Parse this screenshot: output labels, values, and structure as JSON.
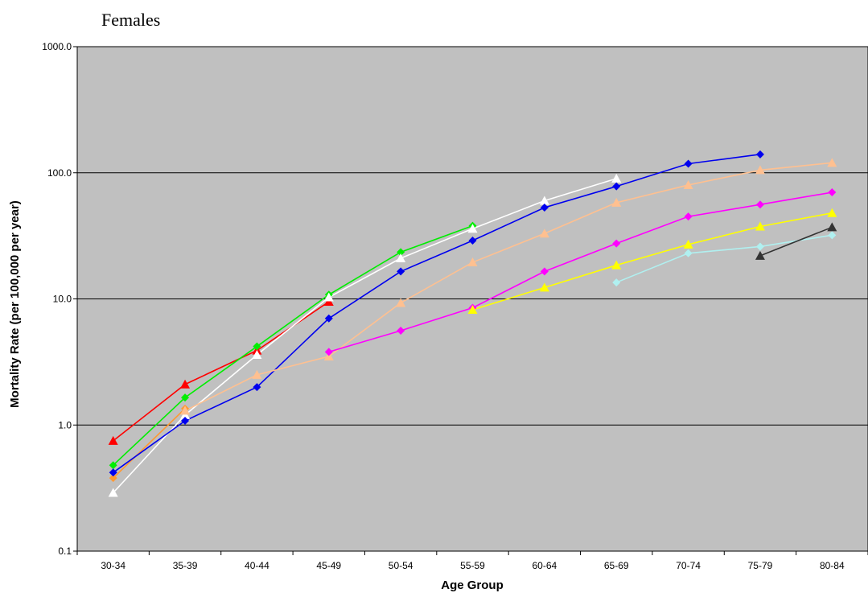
{
  "chart_data": {
    "type": "line",
    "title": "Females",
    "xlabel": "Age Group",
    "ylabel": "Mortality Rate (per 100,000 per year)",
    "yscale": "log",
    "ylim": [
      0.1,
      1000
    ],
    "yticks": [
      "0.1",
      "1.0",
      "10.0",
      "100.0",
      "1000.0"
    ],
    "grid": "horizontal major",
    "plot_background": "#c0c0c0",
    "categories": [
      "30-34",
      "35-39",
      "40-44",
      "45-49",
      "50-54",
      "55-59",
      "60-64",
      "65-69",
      "70-74",
      "75-79",
      "80-84"
    ],
    "series": [
      {
        "color": "#ff0000",
        "marker": "triangle",
        "values": [
          0.75,
          2.1,
          3.9,
          9.5,
          null,
          null,
          null,
          null,
          null,
          null,
          null
        ]
      },
      {
        "color": "#ff9933",
        "marker": "diamond",
        "values": [
          0.38,
          1.35,
          null,
          null,
          null,
          null,
          null,
          null,
          null,
          null,
          null
        ]
      },
      {
        "color": "#00ee00",
        "marker": "diamond",
        "values": [
          0.48,
          1.65,
          4.2,
          10.8,
          23.5,
          38,
          null,
          null,
          null,
          null,
          null
        ]
      },
      {
        "color": "#ffffff",
        "marker": "triangle",
        "values": [
          0.29,
          1.2,
          3.6,
          10.3,
          21,
          36,
          60,
          90,
          null,
          null,
          null
        ]
      },
      {
        "color": "#0000ee",
        "marker": "diamond",
        "values": [
          0.42,
          1.08,
          2.0,
          7.0,
          16.5,
          29,
          53,
          78,
          118,
          140,
          null
        ]
      },
      {
        "color": "#ffc090",
        "marker": "triangle",
        "values": [
          null,
          1.3,
          2.5,
          3.5,
          9.3,
          19.5,
          33,
          58,
          80,
          105,
          120
        ]
      },
      {
        "color": "#ff00ff",
        "marker": "diamond",
        "values": [
          null,
          null,
          null,
          3.8,
          5.6,
          8.5,
          16.5,
          27.5,
          45,
          56,
          70
        ]
      },
      {
        "color": "#ffff00",
        "marker": "triangle",
        "values": [
          null,
          null,
          null,
          null,
          null,
          8.2,
          12.3,
          18.5,
          27,
          37.5,
          48
        ]
      },
      {
        "color": "#b0f0f0",
        "marker": "diamond",
        "values": [
          null,
          null,
          null,
          null,
          null,
          null,
          null,
          13.5,
          23,
          26,
          32
        ]
      },
      {
        "color": "#333333",
        "marker": "triangle",
        "values": [
          null,
          null,
          null,
          null,
          null,
          null,
          null,
          null,
          null,
          22,
          37
        ]
      }
    ]
  }
}
